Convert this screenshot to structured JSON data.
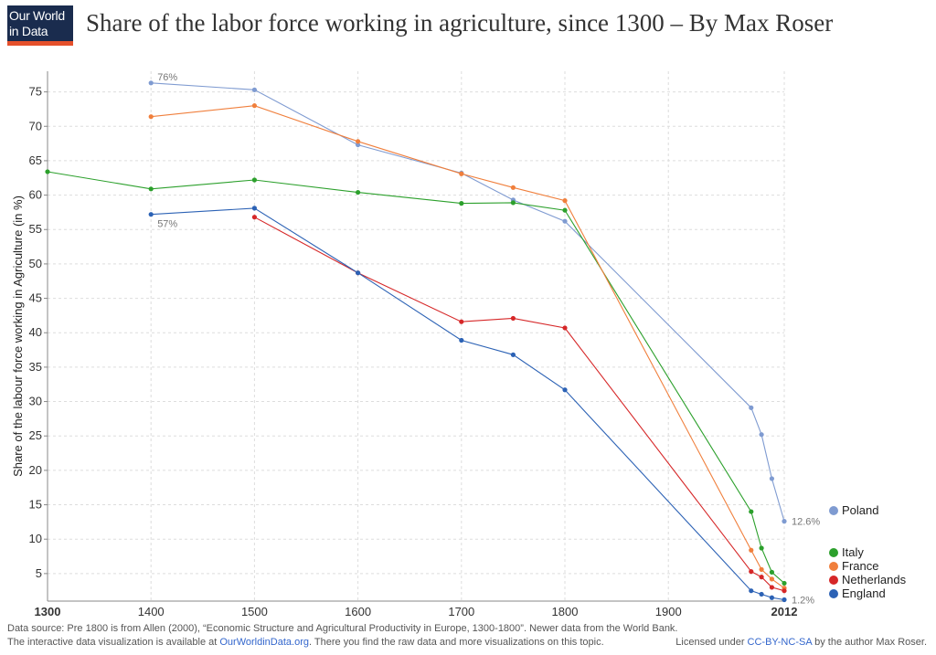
{
  "header": {
    "logo_line1": "Our World",
    "logo_line2": "in Data",
    "title": "Share of the labor force working in agriculture, since 1300 – By Max Roser"
  },
  "footer": {
    "source": "Data source: Pre 1800 is from Allen (2000), “Economic Structure and Agricultural Productivity in Europe, 1300-1800”. Newer data from the World Bank.",
    "line2_prefix": "The interactive data visualization is available at ",
    "line2_link": "OurWorldinData.org",
    "line2_suffix": ". There you find the raw data and more visualizations on this topic.",
    "license_prefix": "Licensed under ",
    "license_link": "CC-BY-NC-SA",
    "license_suffix": " by the author Max Roser."
  },
  "chart_data": {
    "type": "line",
    "title": "Share of the labor force working in agriculture, since 1300 – By Max Roser",
    "ylabel": "Share of the labour force working in Agriculture (in %)",
    "xlabel": "",
    "xlim": [
      1300,
      2012
    ],
    "ylim": [
      1,
      78
    ],
    "grid": true,
    "x_ticks": [
      1300,
      1400,
      1500,
      1600,
      1700,
      1800,
      1900,
      2012
    ],
    "x_tick_labels": [
      "1300",
      "1400",
      "1500",
      "1600",
      "1700",
      "1800",
      "1900",
      "2012"
    ],
    "y_ticks": [
      5,
      10,
      15,
      20,
      25,
      30,
      35,
      40,
      45,
      50,
      55,
      60,
      65,
      70,
      75
    ],
    "y_tick_labels": [
      "5",
      "10",
      "15",
      "20",
      "25",
      "30",
      "35",
      "40",
      "45",
      "50",
      "55",
      "60",
      "65",
      "70",
      "75"
    ],
    "legend_position": "right",
    "series": [
      {
        "name": "Poland",
        "color": "#7f9bd1",
        "points": [
          [
            1400,
            76.3
          ],
          [
            1500,
            75.3
          ],
          [
            1600,
            67.3
          ],
          [
            1700,
            63.2
          ],
          [
            1750,
            59.3
          ],
          [
            1800,
            56.2
          ],
          [
            1980,
            29.1
          ],
          [
            1990,
            25.2
          ],
          [
            2000,
            18.8
          ],
          [
            2012,
            12.6
          ]
        ]
      },
      {
        "name": "Italy",
        "color": "#2ca02c",
        "points": [
          [
            1300,
            63.4
          ],
          [
            1400,
            60.9
          ],
          [
            1500,
            62.2
          ],
          [
            1600,
            60.4
          ],
          [
            1700,
            58.8
          ],
          [
            1750,
            58.9
          ],
          [
            1800,
            57.8
          ],
          [
            1980,
            14.0
          ],
          [
            1990,
            8.7
          ],
          [
            2000,
            5.2
          ],
          [
            2012,
            3.6
          ]
        ]
      },
      {
        "name": "France",
        "color": "#f07f3c",
        "points": [
          [
            1400,
            71.4
          ],
          [
            1500,
            73.0
          ],
          [
            1600,
            67.8
          ],
          [
            1700,
            63.1
          ],
          [
            1750,
            61.1
          ],
          [
            1800,
            59.2
          ],
          [
            1980,
            8.4
          ],
          [
            1990,
            5.6
          ],
          [
            2000,
            4.2
          ],
          [
            2012,
            2.9
          ]
        ]
      },
      {
        "name": "Netherlands",
        "color": "#d62728",
        "points": [
          [
            1500,
            56.8
          ],
          [
            1600,
            48.7
          ],
          [
            1700,
            41.6
          ],
          [
            1750,
            42.1
          ],
          [
            1800,
            40.7
          ],
          [
            1980,
            5.3
          ],
          [
            1990,
            4.5
          ],
          [
            2000,
            3.0
          ],
          [
            2012,
            2.5
          ]
        ]
      },
      {
        "name": "England",
        "color": "#2c62b5",
        "points": [
          [
            1400,
            57.2
          ],
          [
            1500,
            58.1
          ],
          [
            1600,
            48.7
          ],
          [
            1700,
            38.9
          ],
          [
            1750,
            36.8
          ],
          [
            1800,
            31.7
          ],
          [
            1980,
            2.5
          ],
          [
            1990,
            2.0
          ],
          [
            2000,
            1.5
          ],
          [
            2012,
            1.2
          ]
        ]
      }
    ],
    "annotations": [
      {
        "text": "76%",
        "x": 1400,
        "y": 76.3
      },
      {
        "text": "57%",
        "x": 1400,
        "y": 57.2
      },
      {
        "text": "12.6%",
        "x": 2012,
        "y": 12.6
      },
      {
        "text": "1.2%",
        "x": 2012,
        "y": 1.2
      }
    ]
  }
}
